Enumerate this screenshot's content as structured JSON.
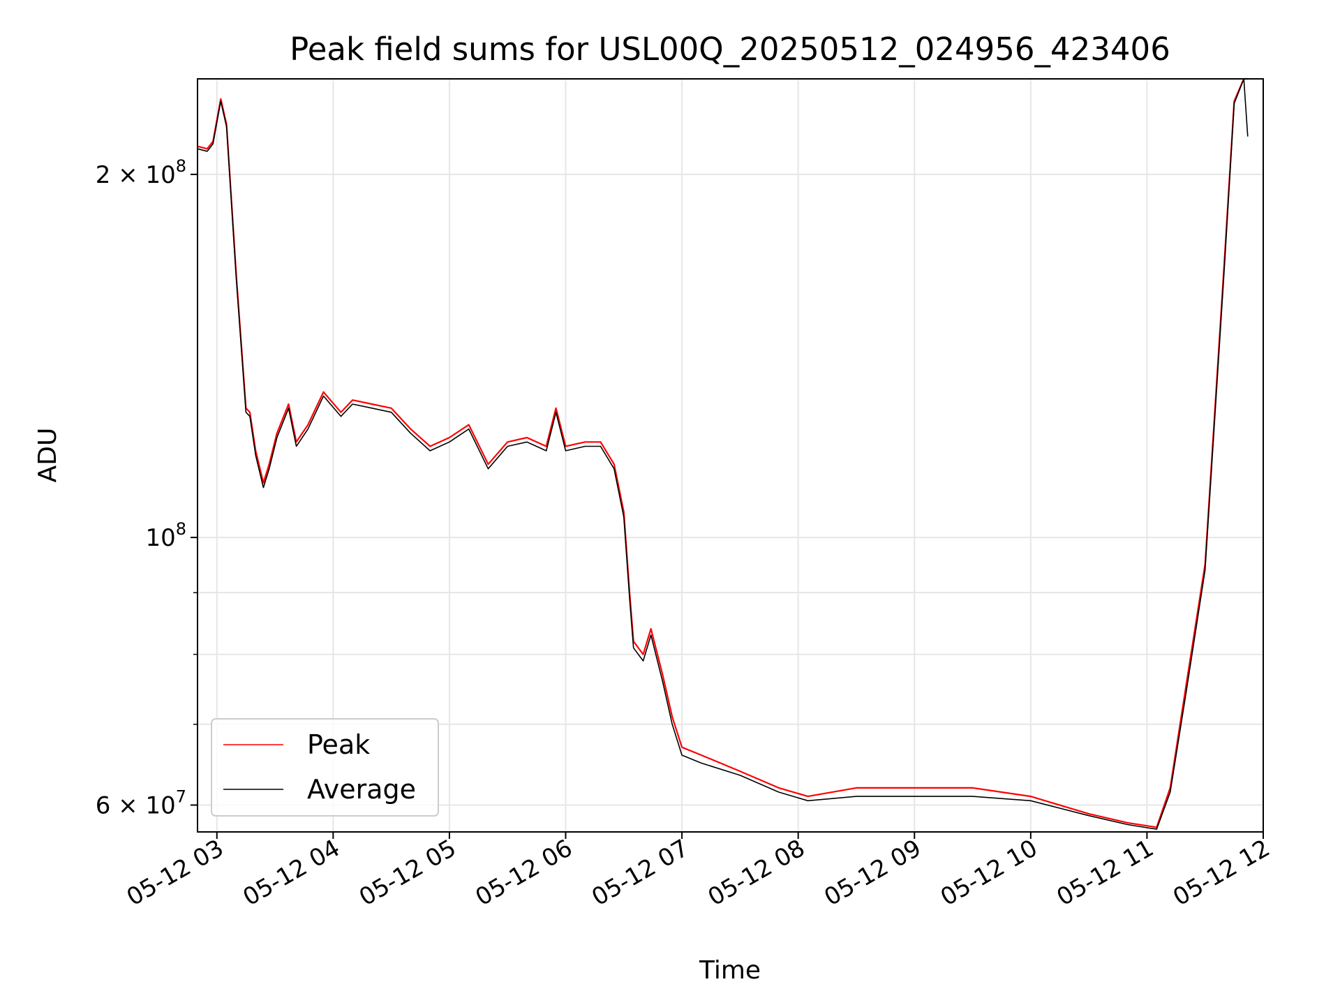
{
  "chart_data": {
    "type": "line",
    "title": "Peak field sums for USL00Q_20250512_024956_423406",
    "xlabel": "Time",
    "ylabel": "ADU",
    "x_scale": "time",
    "y_scale": "log",
    "xlim": [
      "2025-05-12 02:50",
      "2025-05-12 12:00"
    ],
    "ylim": [
      57000000,
      240000000
    ],
    "x_ticks": [
      "2025-05-12 03:00",
      "2025-05-12 04:00",
      "2025-05-12 05:00",
      "2025-05-12 06:00",
      "2025-05-12 07:00",
      "2025-05-12 08:00",
      "2025-05-12 09:00",
      "2025-05-12 10:00",
      "2025-05-12 11:00",
      "2025-05-12 12:00"
    ],
    "x_tick_labels": [
      "05-12 03",
      "05-12 04",
      "05-12 05",
      "05-12 06",
      "05-12 07",
      "05-12 08",
      "05-12 09",
      "05-12 10",
      "05-12 11",
      "05-12 12"
    ],
    "y_major_ticks": [
      60000000,
      100000000,
      200000000
    ],
    "y_major_tick_labels": [
      {
        "base": "6 × 10",
        "exp": "7"
      },
      {
        "base": "10",
        "exp": "8"
      },
      {
        "base": "2 × 10",
        "exp": "8"
      }
    ],
    "y_minor_ticks": [
      70000000,
      80000000,
      90000000
    ],
    "grid": true,
    "legend_position": "lower-left",
    "series": [
      {
        "name": "Peak",
        "color": "#ff0000",
        "x": [
          "2025-05-12 02:50",
          "2025-05-12 02:55",
          "2025-05-12 02:58",
          "2025-05-12 03:02",
          "2025-05-12 03:05",
          "2025-05-12 03:10",
          "2025-05-12 03:15",
          "2025-05-12 03:17",
          "2025-05-12 03:20",
          "2025-05-12 03:24",
          "2025-05-12 03:27",
          "2025-05-12 03:31",
          "2025-05-12 03:37",
          "2025-05-12 03:41",
          "2025-05-12 03:47",
          "2025-05-12 03:55",
          "2025-05-12 04:04",
          "2025-05-12 04:10",
          "2025-05-12 04:20",
          "2025-05-12 04:30",
          "2025-05-12 04:40",
          "2025-05-12 04:50",
          "2025-05-12 05:00",
          "2025-05-12 05:10",
          "2025-05-12 05:20",
          "2025-05-12 05:30",
          "2025-05-12 05:40",
          "2025-05-12 05:50",
          "2025-05-12 05:55",
          "2025-05-12 06:00",
          "2025-05-12 06:10",
          "2025-05-12 06:18",
          "2025-05-12 06:25",
          "2025-05-12 06:30",
          "2025-05-12 06:33",
          "2025-05-12 06:35",
          "2025-05-12 06:40",
          "2025-05-12 06:44",
          "2025-05-12 06:50",
          "2025-05-12 06:55",
          "2025-05-12 07:00",
          "2025-05-12 07:10",
          "2025-05-12 07:30",
          "2025-05-12 07:50",
          "2025-05-12 08:05",
          "2025-05-12 08:30",
          "2025-05-12 09:00",
          "2025-05-12 09:30",
          "2025-05-12 10:00",
          "2025-05-12 10:30",
          "2025-05-12 10:50",
          "2025-05-12 11:05",
          "2025-05-12 11:12",
          "2025-05-12 11:20",
          "2025-05-12 11:30",
          "2025-05-12 11:40",
          "2025-05-12 11:45",
          "2025-05-12 11:50",
          "2025-05-12 11:52"
        ],
        "values": [
          211000000,
          210000000,
          213000000,
          231000000,
          220000000,
          165000000,
          128000000,
          127000000,
          118000000,
          111000000,
          115000000,
          122000000,
          129000000,
          120000000,
          124000000,
          132000000,
          127000000,
          130000000,
          129000000,
          128000000,
          123000000,
          119000000,
          121000000,
          124000000,
          115000000,
          120000000,
          121000000,
          119000000,
          128000000,
          119000000,
          120000000,
          120000000,
          115000000,
          105000000,
          90000000,
          82000000,
          80000000,
          84000000,
          77000000,
          71000000,
          67000000,
          66000000,
          64000000,
          62000000,
          61000000,
          62000000,
          62000000,
          62000000,
          61000000,
          59000000,
          58000000,
          57500000,
          62000000,
          75000000,
          95000000,
          170000000,
          230000000,
          240000000,
          240000000
        ]
      },
      {
        "name": "Average",
        "color": "#000000",
        "x": [
          "2025-05-12 02:50",
          "2025-05-12 02:55",
          "2025-05-12 02:58",
          "2025-05-12 03:02",
          "2025-05-12 03:05",
          "2025-05-12 03:10",
          "2025-05-12 03:15",
          "2025-05-12 03:17",
          "2025-05-12 03:20",
          "2025-05-12 03:24",
          "2025-05-12 03:27",
          "2025-05-12 03:31",
          "2025-05-12 03:37",
          "2025-05-12 03:41",
          "2025-05-12 03:47",
          "2025-05-12 03:55",
          "2025-05-12 04:04",
          "2025-05-12 04:10",
          "2025-05-12 04:20",
          "2025-05-12 04:30",
          "2025-05-12 04:40",
          "2025-05-12 04:50",
          "2025-05-12 05:00",
          "2025-05-12 05:10",
          "2025-05-12 05:20",
          "2025-05-12 05:30",
          "2025-05-12 05:40",
          "2025-05-12 05:50",
          "2025-05-12 05:55",
          "2025-05-12 06:00",
          "2025-05-12 06:10",
          "2025-05-12 06:18",
          "2025-05-12 06:25",
          "2025-05-12 06:30",
          "2025-05-12 06:33",
          "2025-05-12 06:35",
          "2025-05-12 06:40",
          "2025-05-12 06:44",
          "2025-05-12 06:50",
          "2025-05-12 06:55",
          "2025-05-12 07:00",
          "2025-05-12 07:10",
          "2025-05-12 07:30",
          "2025-05-12 07:50",
          "2025-05-12 08:05",
          "2025-05-12 08:30",
          "2025-05-12 09:00",
          "2025-05-12 09:30",
          "2025-05-12 10:00",
          "2025-05-12 10:30",
          "2025-05-12 10:50",
          "2025-05-12 11:05",
          "2025-05-12 11:12",
          "2025-05-12 11:20",
          "2025-05-12 11:30",
          "2025-05-12 11:40",
          "2025-05-12 11:45",
          "2025-05-12 11:50",
          "2025-05-12 11:52"
        ],
        "values": [
          210000000,
          209000000,
          212000000,
          230000000,
          219000000,
          164000000,
          127000000,
          126000000,
          117000000,
          110000000,
          114000000,
          121000000,
          128000000,
          119000000,
          123000000,
          131000000,
          126000000,
          129000000,
          128000000,
          127000000,
          122000000,
          118000000,
          120000000,
          123000000,
          114000000,
          119000000,
          120000000,
          118000000,
          127000000,
          118000000,
          119000000,
          119000000,
          114000000,
          104000000,
          89000000,
          81000000,
          79000000,
          83000000,
          76000000,
          70000000,
          66000000,
          65000000,
          63500000,
          61500000,
          60500000,
          61000000,
          61000000,
          61000000,
          60500000,
          58800000,
          57800000,
          57300000,
          61500000,
          74000000,
          94000000,
          168000000,
          229000000,
          240000000,
          215000000
        ]
      }
    ]
  }
}
